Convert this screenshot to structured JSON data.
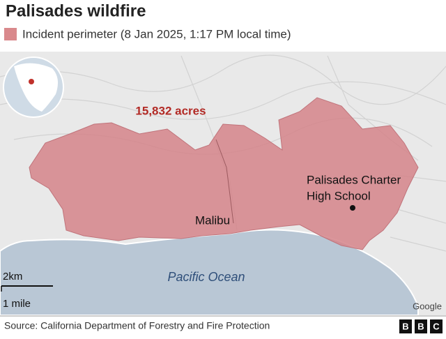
{
  "title": "Palisades wildfire",
  "legend": {
    "label": "Incident perimeter (8 Jan 2025, 1:17 PM local time)"
  },
  "map": {
    "annotation": "15,832 acres",
    "places": [
      {
        "lines": [
          "Malibu"
        ]
      },
      {
        "lines": [
          "Palisades Charter",
          "High School"
        ]
      }
    ],
    "ocean": "Pacific Ocean",
    "scale": [
      "2km",
      "1 mile"
    ],
    "attribution": "Google"
  },
  "footer": {
    "source": "Source: California Department of Forestry and Fire Protection",
    "logo": [
      "B",
      "B",
      "C"
    ]
  }
}
